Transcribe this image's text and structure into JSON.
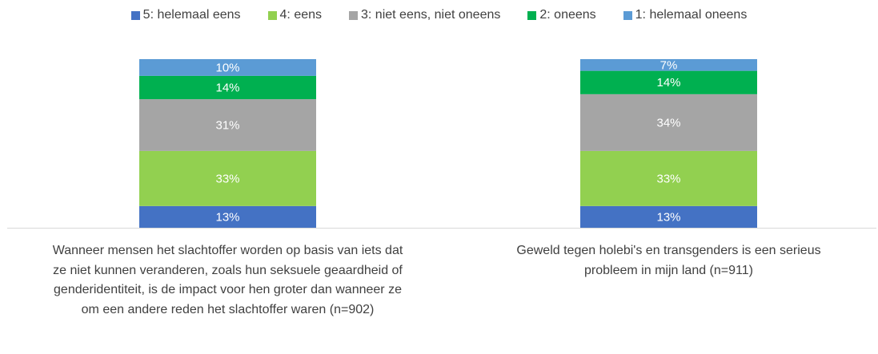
{
  "chart_data": {
    "type": "stacked_bar",
    "categories": [
      "Wanneer mensen het slachtoffer worden op basis van iets dat ze niet kunnen veranderen, zoals hun seksuele geaardheid of genderidentiteit, is de impact voor hen groter dan wanneer ze om een andere reden het slachtoffer waren (n=902)",
      "Geweld tegen holebi's en transgenders is een serieus probleem in mijn land (n=911)"
    ],
    "series": [
      {
        "name": "5: helemaal eens",
        "color": "#4472c4",
        "values": [
          13,
          13
        ],
        "value_labels": [
          "13%",
          "13%"
        ]
      },
      {
        "name": "4: eens",
        "color": "#92d050",
        "values": [
          33,
          33
        ],
        "value_labels": [
          "33%",
          "33%"
        ]
      },
      {
        "name": "3: niet eens, niet oneens",
        "color": "#a5a5a5",
        "values": [
          31,
          34
        ],
        "value_labels": [
          "31%",
          "34%"
        ]
      },
      {
        "name": "2: oneens",
        "color": "#00b050",
        "values": [
          14,
          14
        ],
        "value_labels": [
          "14%",
          "14%"
        ]
      },
      {
        "name": "1: helemaal oneens",
        "color": "#5b9bd5",
        "values": [
          10,
          7
        ],
        "value_labels": [
          "10%",
          "7%"
        ]
      }
    ],
    "legend": "top"
  }
}
